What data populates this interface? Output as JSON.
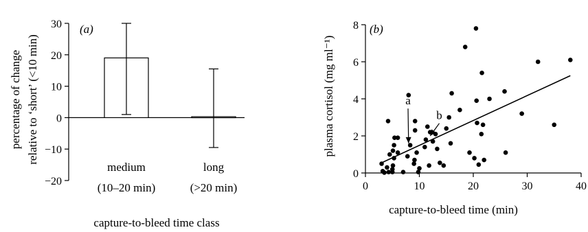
{
  "chart_data": [
    {
      "type": "bar",
      "panel_label": "(a)",
      "categories": [
        {
          "line1": "medium",
          "line2": "(10–20 min)"
        },
        {
          "line1": "long",
          "line2": "(>20 min)"
        }
      ],
      "values": [
        19,
        0.3
      ],
      "error_bars": [
        [
          1,
          30
        ],
        [
          -9.5,
          15.5
        ]
      ],
      "ylabel_line1": "percentage of change",
      "ylabel_line2": "relative to ‘short’ (<10 min)",
      "xlabel": "capture-to-bleed time class",
      "ylim": [
        -20,
        30
      ],
      "yticks": [
        -20,
        -10,
        0,
        10,
        20,
        30
      ],
      "tick_labels": [
        "−20",
        "−10",
        "0",
        "10",
        "20",
        "30"
      ],
      "grid": false
    },
    {
      "type": "scatter",
      "panel_label": "(b)",
      "xlabel": "capture-to-bleed time (min)",
      "ylabel": "plasma cortisol (mg ml⁻¹)",
      "xlim": [
        0,
        40
      ],
      "ylim": [
        0,
        8
      ],
      "xticks": [
        0,
        10,
        20,
        30,
        40
      ],
      "yticks": [
        0,
        2,
        4,
        6,
        8
      ],
      "points": [
        [
          3,
          0.5
        ],
        [
          3.2,
          0.1
        ],
        [
          3.5,
          0.02
        ],
        [
          4,
          0.3
        ],
        [
          4.3,
          0.05
        ],
        [
          4.2,
          2.8
        ],
        [
          4.5,
          1.0
        ],
        [
          5,
          0.2
        ],
        [
          5,
          0.05
        ],
        [
          5.1,
          0.4
        ],
        [
          5.3,
          1.5
        ],
        [
          5.3,
          0.8
        ],
        [
          5.4,
          1.9
        ],
        [
          5.1,
          1.2
        ],
        [
          6,
          1.1
        ],
        [
          6,
          1.9
        ],
        [
          7,
          0.05
        ],
        [
          7.8,
          0.9
        ],
        [
          8,
          4.2
        ],
        [
          8.3,
          1.5
        ],
        [
          9,
          0.5
        ],
        [
          9.1,
          0.7
        ],
        [
          9.2,
          2.8
        ],
        [
          9.2,
          2.3
        ],
        [
          9.5,
          1.1
        ],
        [
          9.8,
          0.05
        ],
        [
          10,
          0.25
        ],
        [
          11,
          1.4
        ],
        [
          11.2,
          1.8
        ],
        [
          11.5,
          2.5
        ],
        [
          11.8,
          0.4
        ],
        [
          12,
          2.2
        ],
        [
          12.5,
          1.7
        ],
        [
          13,
          2.1
        ],
        [
          13.3,
          1.3
        ],
        [
          13.8,
          0.55
        ],
        [
          14.5,
          0.4
        ],
        [
          15,
          2.4
        ],
        [
          15.5,
          3.0
        ],
        [
          15.8,
          1.6
        ],
        [
          16,
          4.3
        ],
        [
          17.5,
          3.4
        ],
        [
          18.5,
          6.8
        ],
        [
          19.3,
          1.1
        ],
        [
          20.2,
          0.8
        ],
        [
          20.5,
          7.8
        ],
        [
          20.6,
          3.9
        ],
        [
          20.7,
          2.7
        ],
        [
          21,
          0.45
        ],
        [
          21.5,
          2.1
        ],
        [
          21.6,
          5.4
        ],
        [
          21.8,
          2.6
        ],
        [
          22,
          0.7
        ],
        [
          23,
          4.0
        ],
        [
          25.8,
          4.4
        ],
        [
          26,
          1.1
        ],
        [
          29,
          3.2
        ],
        [
          32,
          6.0
        ],
        [
          35,
          2.6
        ],
        [
          38,
          6.1
        ]
      ],
      "fit_line": {
        "x": [
          3,
          38
        ],
        "y": [
          0.55,
          5.25
        ]
      },
      "annotations": [
        {
          "label": "a",
          "text_x": 7.9,
          "text_y": 3.7,
          "arrow_to": [
            8,
            1.6
          ]
        },
        {
          "label": "b",
          "text_x": 13.7,
          "text_y": 2.9,
          "arrow_to": [
            12,
            2.0
          ]
        }
      ],
      "grid": false
    }
  ]
}
